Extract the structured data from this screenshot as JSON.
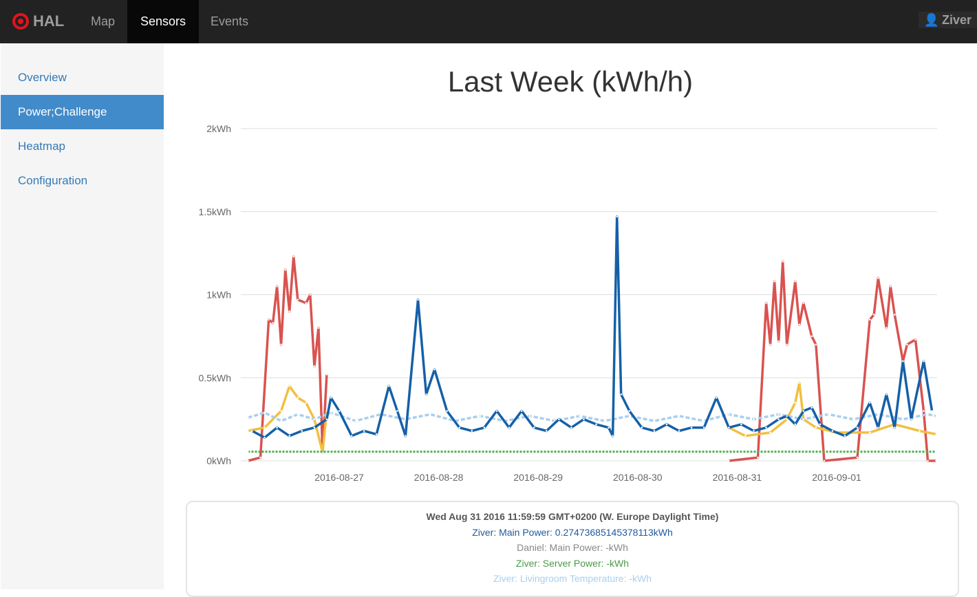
{
  "nav": {
    "brand": "HAL",
    "items": [
      {
        "label": "Map"
      },
      {
        "label": "Sensors",
        "active": true
      },
      {
        "label": "Events"
      }
    ],
    "user": "Ziver"
  },
  "sidebar": {
    "items": [
      {
        "label": "Overview"
      },
      {
        "label": "Power;Challenge",
        "active": true
      },
      {
        "label": "Heatmap"
      },
      {
        "label": "Configuration"
      }
    ]
  },
  "colors": {
    "accent": "#428bca",
    "brand": "#e0141e"
  },
  "chart_data": {
    "type": "line",
    "title": "Last Week (kWh/h)",
    "ylim": [
      0,
      2
    ],
    "yticks": [
      "0kWh",
      "0.5kWh",
      "1kWh",
      "1.5kWh",
      "2kWh"
    ],
    "xticks": [
      "2016-08-27",
      "2016-08-28",
      "2016-08-29",
      "2016-08-30",
      "2016-08-31",
      "2016-09-01"
    ],
    "grid": true,
    "series": [
      {
        "color": "#d9534f",
        "points": [
          [
            "2016-08-26 02:00",
            0
          ],
          [
            "2016-08-26 05:00",
            0.02
          ],
          [
            "2016-08-26 07:00",
            0.85
          ],
          [
            "2016-08-26 08:00",
            0.83
          ],
          [
            "2016-08-26 09:00",
            1.05
          ],
          [
            "2016-08-26 10:00",
            0.7
          ],
          [
            "2016-08-26 11:00",
            1.15
          ],
          [
            "2016-08-26 12:00",
            0.9
          ],
          [
            "2016-08-26 13:00",
            1.23
          ],
          [
            "2016-08-26 14:00",
            0.97
          ],
          [
            "2016-08-26 16:00",
            0.95
          ],
          [
            "2016-08-26 17:00",
            1.0
          ],
          [
            "2016-08-26 18:00",
            0.57
          ],
          [
            "2016-08-26 19:00",
            0.8
          ],
          [
            "2016-08-26 20:00",
            0.05
          ],
          [
            "2016-08-26 21:00",
            0.52
          ],
          null,
          [
            "2016-08-30 22:00",
            0
          ],
          [
            "2016-08-31 05:00",
            0.02
          ],
          [
            "2016-08-31 07:00",
            0.95
          ],
          [
            "2016-08-31 08:00",
            0.7
          ],
          [
            "2016-08-31 09:00",
            1.08
          ],
          [
            "2016-08-31 10:00",
            0.72
          ],
          [
            "2016-08-31 11:00",
            1.2
          ],
          [
            "2016-08-31 12:00",
            0.7
          ],
          [
            "2016-08-31 14:00",
            1.08
          ],
          [
            "2016-08-31 15:00",
            0.82
          ],
          [
            "2016-08-31 16:00",
            0.95
          ],
          [
            "2016-08-31 18:00",
            0.75
          ],
          [
            "2016-08-31 19:00",
            0.7
          ],
          [
            "2016-08-31 21:00",
            0
          ],
          [
            "2016-09-01 05:00",
            0.02
          ],
          [
            "2016-09-01 08:00",
            0.85
          ],
          [
            "2016-09-01 09:00",
            0.88
          ],
          [
            "2016-09-01 10:00",
            1.1
          ],
          [
            "2016-09-01 12:00",
            0.8
          ],
          [
            "2016-09-01 13:00",
            1.05
          ],
          [
            "2016-09-01 14:00",
            0.88
          ],
          [
            "2016-09-01 16:00",
            0.6
          ],
          [
            "2016-09-01 17:00",
            0.7
          ],
          [
            "2016-09-01 19:00",
            0.73
          ],
          [
            "2016-09-01 21:00",
            0.3
          ],
          [
            "2016-09-01 22:00",
            0
          ],
          [
            "2016-09-02 00:00",
            0
          ]
        ]
      },
      {
        "color": "#f0c040",
        "points": [
          [
            "2016-08-26 02:00",
            0.18
          ],
          [
            "2016-08-26 06:00",
            0.2
          ],
          [
            "2016-08-26 10:00",
            0.3
          ],
          [
            "2016-08-26 12:00",
            0.45
          ],
          [
            "2016-08-26 14:00",
            0.38
          ],
          [
            "2016-08-26 16:00",
            0.35
          ],
          [
            "2016-08-26 18:00",
            0.25
          ],
          [
            "2016-08-26 20:00",
            0.05
          ],
          [
            "2016-08-26 21:00",
            0.3
          ],
          null,
          [
            "2016-08-30 22:00",
            0.2
          ],
          [
            "2016-08-31 02:00",
            0.15
          ],
          [
            "2016-08-31 08:00",
            0.17
          ],
          [
            "2016-08-31 12:00",
            0.25
          ],
          [
            "2016-08-31 14:00",
            0.35
          ],
          [
            "2016-08-31 15:00",
            0.47
          ],
          [
            "2016-08-31 16:00",
            0.25
          ],
          [
            "2016-08-31 19:00",
            0.2
          ],
          [
            "2016-09-01 00:00",
            0.17
          ],
          [
            "2016-09-01 08:00",
            0.17
          ],
          [
            "2016-09-01 14:00",
            0.22
          ],
          [
            "2016-09-01 20:00",
            0.18
          ],
          [
            "2016-09-02 00:00",
            0.16
          ]
        ]
      },
      {
        "name": "Ziver: Server Power",
        "color": "#4cae4c",
        "points": [
          [
            "2016-08-26 02:00",
            0.055
          ],
          [
            "2016-09-02 00:00",
            0.055
          ]
        ]
      },
      {
        "name": "Ziver: Livingroom Temperature",
        "color": "#a8cfee",
        "points": [
          [
            "2016-08-26 02:00",
            0.26
          ],
          [
            "2016-08-26 06:00",
            0.29
          ],
          [
            "2016-08-26 10:00",
            0.24
          ],
          [
            "2016-08-26 14:00",
            0.28
          ],
          [
            "2016-08-26 18:00",
            0.25
          ],
          [
            "2016-08-26 22:00",
            0.29
          ],
          [
            "2016-08-27 04:00",
            0.24
          ],
          [
            "2016-08-27 10:00",
            0.28
          ],
          [
            "2016-08-27 16:00",
            0.25
          ],
          [
            "2016-08-27 22:00",
            0.28
          ],
          [
            "2016-08-28 04:00",
            0.24
          ],
          [
            "2016-08-28 10:00",
            0.27
          ],
          [
            "2016-08-28 16:00",
            0.24
          ],
          [
            "2016-08-28 22:00",
            0.27
          ],
          [
            "2016-08-29 04:00",
            0.24
          ],
          [
            "2016-08-29 10:00",
            0.27
          ],
          [
            "2016-08-29 16:00",
            0.24
          ],
          [
            "2016-08-29 22:00",
            0.27
          ],
          [
            "2016-08-30 04:00",
            0.24
          ],
          [
            "2016-08-30 10:00",
            0.27
          ],
          [
            "2016-08-30 16:00",
            0.24
          ],
          [
            "2016-08-30 22:00",
            0.28
          ],
          [
            "2016-08-31 04:00",
            0.25
          ],
          [
            "2016-08-31 10:00",
            0.28
          ],
          [
            "2016-08-31 16:00",
            0.25
          ],
          [
            "2016-08-31 22:00",
            0.28
          ],
          [
            "2016-09-01 04:00",
            0.25
          ],
          [
            "2016-09-01 10:00",
            0.28
          ],
          [
            "2016-09-01 16:00",
            0.25
          ],
          [
            "2016-09-01 22:00",
            0.28
          ],
          [
            "2016-09-02 00:00",
            0.27
          ]
        ]
      },
      {
        "name": "Ziver: Main Power",
        "color": "#1560a8",
        "points": [
          [
            "2016-08-26 03:00",
            0.18
          ],
          [
            "2016-08-26 06:00",
            0.14
          ],
          [
            "2016-08-26 09:00",
            0.2
          ],
          [
            "2016-08-26 12:00",
            0.15
          ],
          [
            "2016-08-26 15:00",
            0.18
          ],
          [
            "2016-08-26 18:00",
            0.2
          ],
          [
            "2016-08-26 21:00",
            0.25
          ],
          [
            "2016-08-26 22:00",
            0.38
          ],
          [
            "2016-08-27 00:00",
            0.3
          ],
          [
            "2016-08-27 03:00",
            0.15
          ],
          [
            "2016-08-27 06:00",
            0.18
          ],
          [
            "2016-08-27 09:00",
            0.16
          ],
          [
            "2016-08-27 12:00",
            0.45
          ],
          [
            "2016-08-27 14:00",
            0.3
          ],
          [
            "2016-08-27 16:00",
            0.15
          ],
          [
            "2016-08-27 19:00",
            0.97
          ],
          [
            "2016-08-27 21:00",
            0.4
          ],
          [
            "2016-08-27 23:00",
            0.55
          ],
          [
            "2016-08-28 02:00",
            0.3
          ],
          [
            "2016-08-28 05:00",
            0.2
          ],
          [
            "2016-08-28 08:00",
            0.18
          ],
          [
            "2016-08-28 11:00",
            0.2
          ],
          [
            "2016-08-28 14:00",
            0.3
          ],
          [
            "2016-08-28 17:00",
            0.2
          ],
          [
            "2016-08-28 20:00",
            0.3
          ],
          [
            "2016-08-28 23:00",
            0.2
          ],
          [
            "2016-08-29 02:00",
            0.18
          ],
          [
            "2016-08-29 05:00",
            0.25
          ],
          [
            "2016-08-29 08:00",
            0.2
          ],
          [
            "2016-08-29 11:00",
            0.25
          ],
          [
            "2016-08-29 14:00",
            0.22
          ],
          [
            "2016-08-29 17:00",
            0.2
          ],
          [
            "2016-08-29 18:00",
            0.15
          ],
          [
            "2016-08-29 19:00",
            1.47
          ],
          [
            "2016-08-29 20:00",
            0.4
          ],
          [
            "2016-08-29 22:00",
            0.3
          ],
          [
            "2016-08-30 01:00",
            0.2
          ],
          [
            "2016-08-30 04:00",
            0.18
          ],
          [
            "2016-08-30 07:00",
            0.22
          ],
          [
            "2016-08-30 10:00",
            0.18
          ],
          [
            "2016-08-30 13:00",
            0.2
          ],
          [
            "2016-08-30 16:00",
            0.2
          ],
          [
            "2016-08-30 19:00",
            0.38
          ],
          [
            "2016-08-30 22:00",
            0.2
          ],
          [
            "2016-08-31 01:00",
            0.22
          ],
          [
            "2016-08-31 04:00",
            0.18
          ],
          [
            "2016-08-31 07:00",
            0.2
          ],
          [
            "2016-08-31 10:00",
            0.25
          ],
          [
            "2016-08-31 12:00",
            0.27
          ],
          [
            "2016-08-31 14:00",
            0.22
          ],
          [
            "2016-08-31 16:00",
            0.3
          ],
          [
            "2016-08-31 18:00",
            0.32
          ],
          [
            "2016-08-31 20:00",
            0.22
          ],
          [
            "2016-08-31 23:00",
            0.18
          ],
          [
            "2016-09-01 02:00",
            0.15
          ],
          [
            "2016-09-01 05:00",
            0.2
          ],
          [
            "2016-09-01 08:00",
            0.35
          ],
          [
            "2016-09-01 10:00",
            0.2
          ],
          [
            "2016-09-01 12:00",
            0.4
          ],
          [
            "2016-09-01 14:00",
            0.2
          ],
          [
            "2016-09-01 16:00",
            0.6
          ],
          [
            "2016-09-01 18:00",
            0.25
          ],
          [
            "2016-09-01 21:00",
            0.6
          ],
          [
            "2016-09-01 23:00",
            0.3
          ]
        ]
      }
    ]
  },
  "tooltip": {
    "date": "Wed Aug 31 2016 11:59:59 GMT+0200 (W. Europe Daylight Time)",
    "lines": [
      {
        "text": "Ziver: Main Power: 0.27473685145378113kWh",
        "color": "#1f5a9c"
      },
      {
        "text": "Daniel: Main Power: -kWh",
        "color": "#888888"
      },
      {
        "text": "Ziver: Server Power: -kWh",
        "color": "#4a9a4a"
      },
      {
        "text": "Ziver: Livingroom Temperature: -kWh",
        "color": "#a8cfee"
      }
    ]
  }
}
